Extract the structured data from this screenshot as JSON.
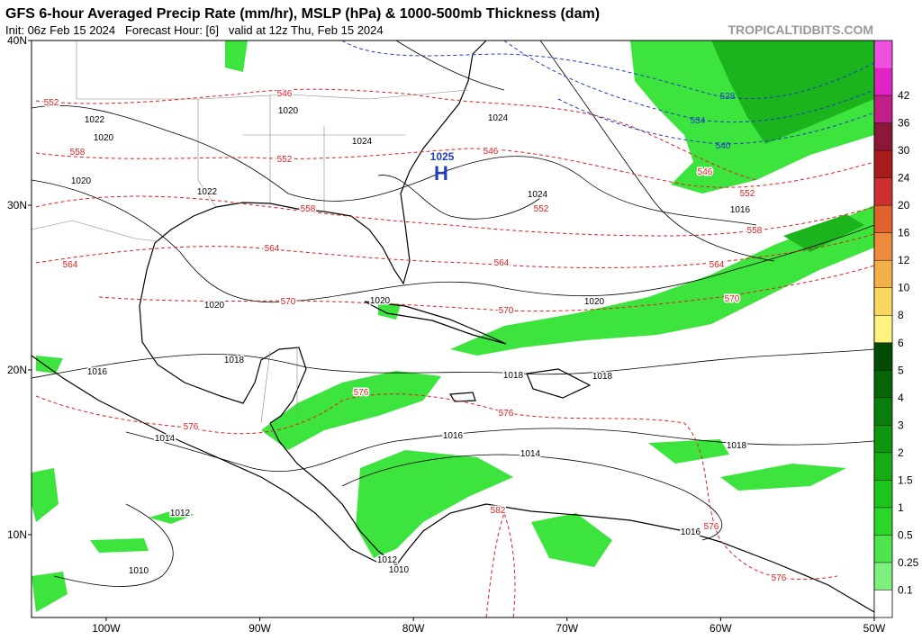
{
  "header": {
    "title": "GFS 6-hour Averaged Precip Rate (mm/hr), MSLP (hPa) & 1000-500mb Thickness (dam)",
    "subtitle": "Init: 06z Feb 15 2024   Forecast Hour: [6]   valid at 12z Thu, Feb 15 2024",
    "site": "TROPICALTIDBITS.COM"
  },
  "map": {
    "lon_ticks": [
      {
        "value": -100,
        "label": "100W"
      },
      {
        "value": -90,
        "label": "90W"
      },
      {
        "value": -80,
        "label": "80W"
      },
      {
        "value": -70,
        "label": "70W"
      },
      {
        "value": -60,
        "label": "60W"
      },
      {
        "value": -50,
        "label": "50W"
      }
    ],
    "lat_ticks": [
      {
        "value": 40,
        "label": "40N"
      },
      {
        "value": 30,
        "label": "30N"
      },
      {
        "value": 20,
        "label": "20N"
      },
      {
        "value": 10,
        "label": "10N"
      }
    ],
    "high": {
      "label": "H",
      "pressure": 1025
    },
    "pressure_labels": [
      1022,
      1020,
      1020,
      1020,
      1024,
      1024,
      1022,
      1024,
      1016,
      1020,
      1020,
      1020,
      1018,
      1016,
      1018,
      1018,
      1014,
      1016,
      1014,
      1018,
      1012,
      1016,
      1012,
      1010,
      1010
    ],
    "thickness_labels": [
      552,
      546,
      558,
      552,
      558,
      546,
      552,
      546,
      552,
      558,
      564,
      564,
      564,
      564,
      570,
      570,
      570,
      576,
      576,
      576,
      582,
      576,
      576
    ],
    "cold_thickness_labels": [
      528,
      534,
      540
    ]
  },
  "colorbar": {
    "ticks": [
      0.1,
      0.25,
      0.5,
      1,
      1.5,
      2,
      3,
      4,
      5,
      6,
      8,
      10,
      12,
      16,
      20,
      24,
      30,
      36,
      42
    ],
    "colors": [
      "#ffffff",
      "#7ef07e",
      "#4ee44e",
      "#2ad62a",
      "#1cc41c",
      "#14ae14",
      "#0e960e",
      "#0a7e0a",
      "#066606",
      "#044c04",
      "#fff380",
      "#f8d860",
      "#f4b048",
      "#ee8a3c",
      "#e2622e",
      "#cc3030",
      "#a81c1c",
      "#8c1838",
      "#c02088",
      "#e024c4",
      "#f050e0"
    ]
  }
}
